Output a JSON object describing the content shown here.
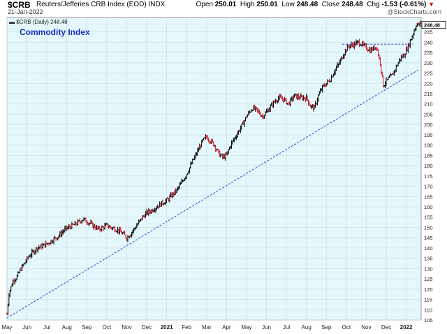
{
  "header": {
    "symbol": "$CRB",
    "name": "Reuters/Jefferies CRB Index (EOD)",
    "exchange": "INDX",
    "date": "21-Jan-2022",
    "open_label": "Open",
    "open": "250.01",
    "high_label": "High",
    "high": "250.01",
    "low_label": "Low",
    "low": "248.48",
    "close_label": "Close",
    "close": "248.48",
    "chg_label": "Chg",
    "chg": "-1.53 (-0.61%)",
    "watermark": "@StockCharts.com"
  },
  "chart_data": {
    "type": "ohlc",
    "legend_text": "$CRB (Daily) 248.48",
    "annotation": "Commodity Index",
    "last_value_tag": "248.48",
    "ylim": [
      105,
      252
    ],
    "y_ticks": [
      105,
      110,
      115,
      120,
      125,
      130,
      135,
      140,
      145,
      150,
      155,
      160,
      165,
      170,
      175,
      180,
      185,
      190,
      195,
      200,
      205,
      210,
      215,
      220,
      225,
      230,
      235,
      240,
      245
    ],
    "x_ticks": [
      {
        "label": "May",
        "m": 0
      },
      {
        "label": "Jun",
        "m": 1
      },
      {
        "label": "Jul",
        "m": 2
      },
      {
        "label": "Aug",
        "m": 3
      },
      {
        "label": "Sep",
        "m": 4
      },
      {
        "label": "Oct",
        "m": 5
      },
      {
        "label": "Nov",
        "m": 6
      },
      {
        "label": "Dec",
        "m": 7
      },
      {
        "label": "2021",
        "m": 8,
        "bold": true
      },
      {
        "label": "Feb",
        "m": 9
      },
      {
        "label": "Mar",
        "m": 10
      },
      {
        "label": "Apr",
        "m": 11
      },
      {
        "label": "May",
        "m": 12
      },
      {
        "label": "Jun",
        "m": 13
      },
      {
        "label": "Jul",
        "m": 14
      },
      {
        "label": "Aug",
        "m": 15
      },
      {
        "label": "Sep",
        "m": 16
      },
      {
        "label": "Oct",
        "m": 17
      },
      {
        "label": "Nov",
        "m": 18
      },
      {
        "label": "Dec",
        "m": 19
      },
      {
        "label": "2022",
        "m": 20,
        "bold": true
      }
    ],
    "x_range_months": [
      0,
      20.75
    ],
    "price_path": [
      [
        0.0,
        108
      ],
      [
        0.1,
        118
      ],
      [
        0.3,
        124
      ],
      [
        0.5,
        126
      ],
      [
        0.7,
        130
      ],
      [
        0.9,
        133
      ],
      [
        1.1,
        136
      ],
      [
        1.3,
        138
      ],
      [
        1.5,
        140
      ],
      [
        1.8,
        141
      ],
      [
        2.0,
        142
      ],
      [
        2.3,
        144
      ],
      [
        2.6,
        146
      ],
      [
        2.9,
        149
      ],
      [
        3.1,
        150
      ],
      [
        3.3,
        151
      ],
      [
        3.5,
        152
      ],
      [
        3.8,
        154
      ],
      [
        4.0,
        153
      ],
      [
        4.3,
        151
      ],
      [
        4.6,
        149
      ],
      [
        4.8,
        150
      ],
      [
        5.0,
        151
      ],
      [
        5.2,
        150
      ],
      [
        5.5,
        149
      ],
      [
        5.8,
        147
      ],
      [
        6.0,
        145
      ],
      [
        6.2,
        147
      ],
      [
        6.5,
        151
      ],
      [
        6.8,
        155
      ],
      [
        7.0,
        157
      ],
      [
        7.2,
        158
      ],
      [
        7.5,
        160
      ],
      [
        7.8,
        162
      ],
      [
        8.0,
        163
      ],
      [
        8.2,
        165
      ],
      [
        8.5,
        168
      ],
      [
        8.7,
        171
      ],
      [
        9.0,
        176
      ],
      [
        9.2,
        180
      ],
      [
        9.4,
        184
      ],
      [
        9.6,
        188
      ],
      [
        9.8,
        192
      ],
      [
        10.0,
        194
      ],
      [
        10.2,
        192
      ],
      [
        10.4,
        190
      ],
      [
        10.6,
        186
      ],
      [
        10.8,
        184
      ],
      [
        11.0,
        185
      ],
      [
        11.2,
        190
      ],
      [
        11.5,
        195
      ],
      [
        11.8,
        200
      ],
      [
        12.0,
        204
      ],
      [
        12.3,
        208
      ],
      [
        12.5,
        207
      ],
      [
        12.8,
        204
      ],
      [
        13.0,
        206
      ],
      [
        13.3,
        210
      ],
      [
        13.6,
        213
      ],
      [
        13.9,
        212
      ],
      [
        14.1,
        210
      ],
      [
        14.4,
        214
      ],
      [
        14.7,
        213
      ],
      [
        15.0,
        213
      ],
      [
        15.2,
        209
      ],
      [
        15.4,
        208
      ],
      [
        15.6,
        214
      ],
      [
        15.8,
        218
      ],
      [
        16.0,
        220
      ],
      [
        16.2,
        222
      ],
      [
        16.4,
        226
      ],
      [
        16.6,
        229
      ],
      [
        16.9,
        235
      ],
      [
        17.1,
        238
      ],
      [
        17.4,
        239
      ],
      [
        17.6,
        240
      ],
      [
        17.9,
        238
      ],
      [
        18.2,
        236
      ],
      [
        18.5,
        238
      ],
      [
        18.7,
        230
      ],
      [
        18.85,
        219
      ],
      [
        19.0,
        221
      ],
      [
        19.3,
        224
      ],
      [
        19.5,
        228
      ],
      [
        19.7,
        232
      ],
      [
        19.9,
        234
      ],
      [
        20.1,
        238
      ],
      [
        20.3,
        243
      ],
      [
        20.5,
        248.5
      ],
      [
        20.7,
        248.48
      ]
    ],
    "support_line": {
      "from": [
        0.0,
        106
      ],
      "to": [
        20.6,
        226.5
      ]
    },
    "resistance_line": {
      "from": [
        16.8,
        239
      ],
      "to": [
        20.35,
        239
      ]
    }
  }
}
